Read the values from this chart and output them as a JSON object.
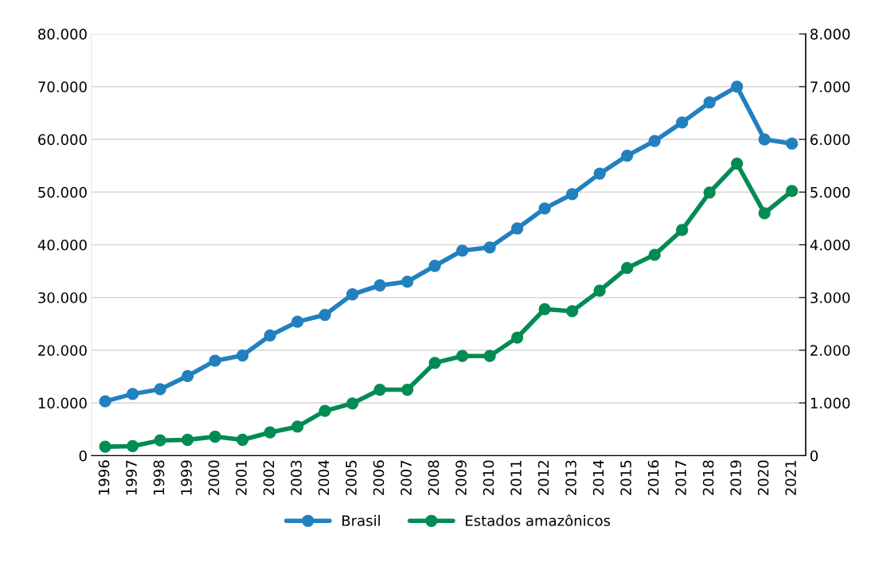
{
  "chart_data": {
    "type": "line",
    "categories": [
      "1996",
      "1997",
      "1998",
      "1999",
      "2000",
      "2001",
      "2002",
      "2003",
      "2004",
      "2005",
      "2006",
      "2007",
      "2008",
      "2009",
      "2010",
      "2011",
      "2012",
      "2013",
      "2014",
      "2015",
      "2016",
      "2017",
      "2018",
      "2019",
      "2020",
      "2021"
    ],
    "series": [
      {
        "name": "Brasil",
        "color": "#2280bf",
        "values": [
          10300,
          11700,
          12600,
          15100,
          18000,
          19000,
          22800,
          25400,
          26700,
          30600,
          32300,
          33000,
          36000,
          38900,
          39500,
          43100,
          46900,
          49600,
          53500,
          56900,
          59700,
          63200,
          67000,
          70000,
          60000,
          59200
        ]
      },
      {
        "name": "Estados amazônicos",
        "color": "#038b54",
        "axis": "y2",
        "values": [
          170,
          180,
          290,
          300,
          360,
          300,
          440,
          550,
          850,
          990,
          1250,
          1250,
          1760,
          1890,
          1890,
          2240,
          2780,
          2740,
          3130,
          3560,
          3810,
          4280,
          4990,
          5540,
          4600,
          5020
        ]
      }
    ],
    "ylim": [
      0,
      80000
    ],
    "yticks": [
      0,
      {
        "value": 10000,
        "label": "10.000"
      },
      {
        "value": 20000,
        "label": "20.000"
      },
      {
        "value": 30000,
        "label": "30.000"
      },
      {
        "value": 40000,
        "label": "40.000"
      },
      {
        "value": 50000,
        "label": "50.000"
      },
      {
        "value": 60000,
        "label": "60.000"
      },
      {
        "value": 70000,
        "label": "70.000"
      },
      {
        "value": 80000,
        "label": "80.000"
      }
    ],
    "y2lim": [
      0,
      8000
    ],
    "y2ticks": [
      0,
      {
        "value": 1000,
        "label": "1.000"
      },
      {
        "value": 2000,
        "label": "2.000"
      },
      {
        "value": 3000,
        "label": "3.000"
      },
      {
        "value": 4000,
        "label": "4.000"
      },
      {
        "value": 5000,
        "label": "5.000"
      },
      {
        "value": 6000,
        "label": "6.000"
      },
      {
        "value": 7000,
        "label": "7.000"
      },
      {
        "value": 8000,
        "label": "8.000"
      }
    ],
    "grid": "y",
    "legend": "bottom",
    "marker": "circle",
    "line_style": "solid"
  }
}
